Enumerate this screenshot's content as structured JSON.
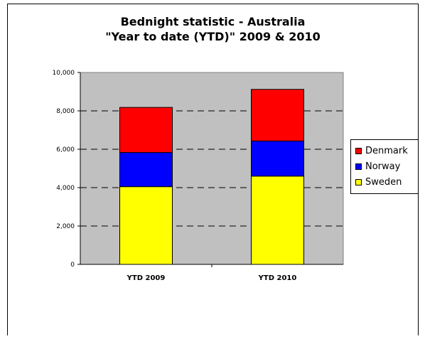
{
  "chart_data": {
    "type": "bar",
    "stacked": true,
    "title": [
      "Bednight statistic - Australia",
      "\"Year to date (YTD)\" 2009 & 2010"
    ],
    "categories": [
      "YTD 2009",
      "YTD 2010"
    ],
    "series": [
      {
        "name": "Sweden",
        "color": "#ffff00",
        "values": [
          4050,
          4600
        ]
      },
      {
        "name": "Norway",
        "color": "#0000ff",
        "values": [
          1780,
          1830
        ]
      },
      {
        "name": "Denmark",
        "color": "#ff0000",
        "values": [
          2350,
          2690
        ]
      }
    ],
    "ylim": [
      0,
      10000
    ],
    "yticks": [
      "0",
      "2,000",
      "4,000",
      "6,000",
      "8,000",
      "10,000"
    ],
    "grid": true,
    "plot_background": "#c0c0c0",
    "legend": {
      "position": "right",
      "order": [
        "Denmark",
        "Norway",
        "Sweden"
      ]
    }
  }
}
